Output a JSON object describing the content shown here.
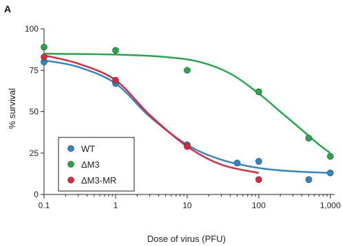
{
  "panel_label": "A",
  "chart_data": {
    "type": "scatter",
    "title": "",
    "xlabel": "Dose of virus (PFU)",
    "ylabel": "% survival",
    "x_scale": "log",
    "xlim": [
      0.1,
      1000
    ],
    "ylim": [
      0,
      100
    ],
    "x_ticks": [
      0.1,
      1,
      10,
      100,
      1000
    ],
    "x_tick_labels": [
      "0.1",
      "1",
      "10",
      "100",
      "1,000"
    ],
    "y_ticks": [
      0,
      25,
      50,
      75,
      100
    ],
    "y_tick_labels": [
      "0",
      "25",
      "50",
      "75",
      "100"
    ],
    "grid": false,
    "legend_position": "bottom-left",
    "series": [
      {
        "name": "WT",
        "color": "#2f86c9",
        "points": [
          {
            "x": 0.1,
            "y": 80
          },
          {
            "x": 1,
            "y": 67
          },
          {
            "x": 10,
            "y": 30
          },
          {
            "x": 50,
            "y": 19
          },
          {
            "x": 100,
            "y": 20
          },
          {
            "x": 500,
            "y": 9
          },
          {
            "x": 1000,
            "y": 13
          }
        ],
        "fit": [
          {
            "x": 0.1,
            "y": 81
          },
          {
            "x": 0.3,
            "y": 77
          },
          {
            "x": 1,
            "y": 67
          },
          {
            "x": 3,
            "y": 47
          },
          {
            "x": 10,
            "y": 30
          },
          {
            "x": 30,
            "y": 21
          },
          {
            "x": 100,
            "y": 16
          },
          {
            "x": 300,
            "y": 14
          },
          {
            "x": 1000,
            "y": 13
          }
        ]
      },
      {
        "name": "ΔM3",
        "color": "#23a84a",
        "points": [
          {
            "x": 0.1,
            "y": 89
          },
          {
            "x": 1,
            "y": 87
          },
          {
            "x": 10,
            "y": 75
          },
          {
            "x": 100,
            "y": 62
          },
          {
            "x": 500,
            "y": 34
          },
          {
            "x": 1000,
            "y": 23
          }
        ],
        "fit": [
          {
            "x": 0.1,
            "y": 85
          },
          {
            "x": 1,
            "y": 84.5
          },
          {
            "x": 5,
            "y": 83
          },
          {
            "x": 15,
            "y": 80
          },
          {
            "x": 40,
            "y": 73
          },
          {
            "x": 100,
            "y": 61
          },
          {
            "x": 200,
            "y": 50
          },
          {
            "x": 400,
            "y": 39
          },
          {
            "x": 700,
            "y": 30
          },
          {
            "x": 1000,
            "y": 25
          }
        ]
      },
      {
        "name": "ΔM3-MR",
        "color": "#e0263c",
        "points": [
          {
            "x": 0.1,
            "y": 83
          },
          {
            "x": 1,
            "y": 69
          },
          {
            "x": 10,
            "y": 29
          },
          {
            "x": 100,
            "y": 9
          }
        ],
        "fit": [
          {
            "x": 0.1,
            "y": 84
          },
          {
            "x": 0.3,
            "y": 79
          },
          {
            "x": 1,
            "y": 69
          },
          {
            "x": 3,
            "y": 48
          },
          {
            "x": 10,
            "y": 29
          },
          {
            "x": 30,
            "y": 18
          },
          {
            "x": 100,
            "y": 13
          }
        ]
      }
    ]
  }
}
